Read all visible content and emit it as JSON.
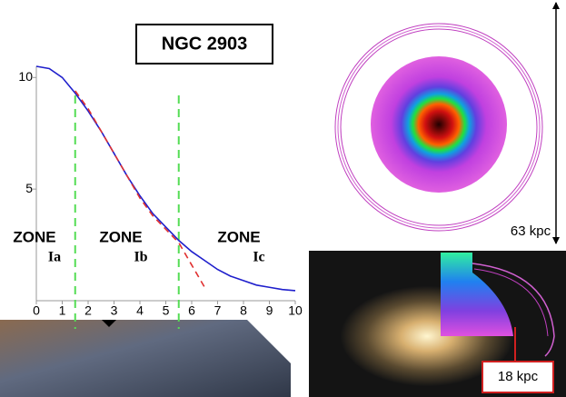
{
  "chart_data": {
    "type": "line",
    "title": "NGC 2903",
    "x": [
      0,
      0.5,
      1,
      1.5,
      2,
      2.5,
      3,
      3.5,
      4,
      4.5,
      5,
      5.5,
      6,
      6.5,
      7,
      7.5,
      8,
      8.5,
      9,
      9.5,
      10
    ],
    "series": [
      {
        "color": "#1f1fcc",
        "values": [
          10.5,
          10.4,
          10.0,
          9.3,
          8.5,
          7.6,
          6.6,
          5.6,
          4.7,
          3.9,
          3.3,
          2.7,
          2.2,
          1.8,
          1.4,
          1.1,
          0.9,
          0.7,
          0.6,
          0.5,
          0.45
        ]
      },
      {
        "color": "#e03030",
        "dashed": true,
        "values": [
          null,
          null,
          null,
          9.4,
          8.6,
          7.6,
          6.6,
          5.6,
          4.6,
          3.8,
          3.2,
          2.6,
          1.6,
          0.6,
          null,
          null,
          null,
          null,
          null,
          null,
          null
        ]
      }
    ],
    "vlines": {
      "color": "#55dd55",
      "values": [
        1.5,
        5.5
      ]
    },
    "xlim": [
      0,
      10
    ],
    "xticks": [
      0,
      1,
      2,
      3,
      4,
      5,
      6,
      7,
      8,
      9,
      10
    ],
    "ylim": [
      0,
      10.5
    ],
    "yticks": [
      5,
      10
    ],
    "zones": [
      {
        "label": "ZONE",
        "sublabel": "Ia"
      },
      {
        "label": "ZONE",
        "sublabel": "Ib"
      },
      {
        "label": "ZONE",
        "sublabel": "Ic"
      }
    ],
    "annotations": [
      "63 kpc",
      "18 kpc"
    ]
  }
}
